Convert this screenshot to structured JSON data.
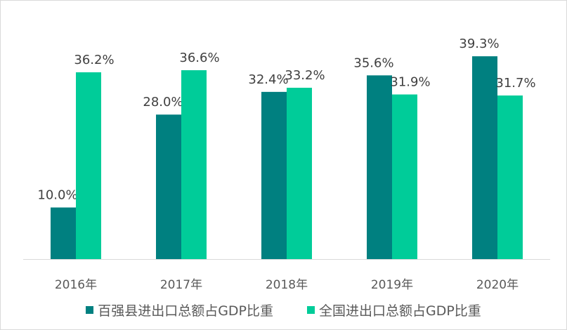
{
  "chart_data": {
    "type": "bar",
    "categories": [
      "2016年",
      "2017年",
      "2018年",
      "2019年",
      "2020年"
    ],
    "series": [
      {
        "name": "百强县进出口总额占GDP比重",
        "values": [
          10.0,
          28.0,
          32.4,
          35.6,
          39.3
        ],
        "labels": [
          "10.0%",
          "28.0%",
          "32.4%",
          "35.6%",
          "39.3%"
        ],
        "color": "#008080"
      },
      {
        "name": "全国进出口总额占GDP比重",
        "values": [
          36.2,
          36.6,
          33.2,
          31.9,
          31.7
        ],
        "labels": [
          "36.2%",
          "36.6%",
          "33.2%",
          "31.9%",
          "31.7%"
        ],
        "color": "#00CC99"
      }
    ],
    "title": "",
    "xlabel": "",
    "ylabel": "",
    "ylim": [
      0,
      40
    ],
    "grid": false,
    "legend": "bottom"
  }
}
